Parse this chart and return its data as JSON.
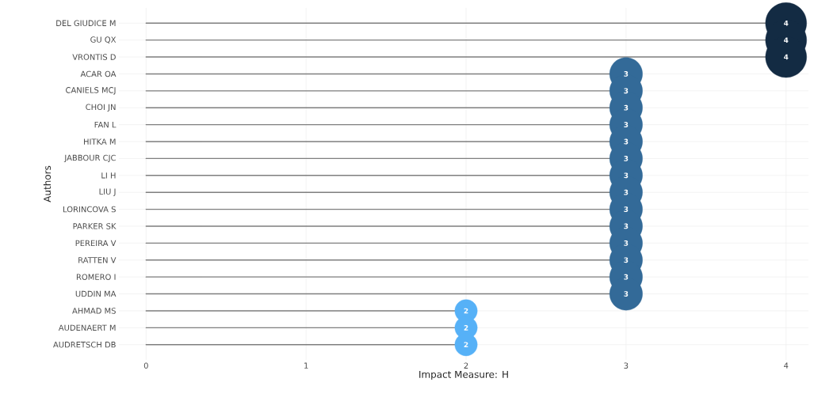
{
  "chart_data": {
    "type": "lollipop",
    "orientation": "horizontal",
    "xlabel": "Impact Measure: H",
    "ylabel": "Authors",
    "categories": [
      "DEL GIUDICE M",
      "GU QX",
      "VRONTIS D",
      "ACAR OA",
      "CANIELS MCJ",
      "CHOI JN",
      "FAN L",
      "HITKA M",
      "JABBOUR CJC",
      "LI H",
      "LIU J",
      "LORINCOVA S",
      "PARKER SK",
      "PEREIRA V",
      "RATTEN V",
      "ROMERO I",
      "UDDIN MA",
      "AHMAD MS",
      "AUDENAERT M",
      "AUDRETSCH DB"
    ],
    "values": [
      4,
      4,
      4,
      3,
      3,
      3,
      3,
      3,
      3,
      3,
      3,
      3,
      3,
      3,
      3,
      3,
      3,
      2,
      2,
      2
    ],
    "colors": [
      "#132b43",
      "#132b43",
      "#132b43",
      "#336a98",
      "#336a98",
      "#336a98",
      "#336a98",
      "#336a98",
      "#336a98",
      "#336a98",
      "#336a98",
      "#336a98",
      "#336a98",
      "#336a98",
      "#336a98",
      "#336a98",
      "#336a98",
      "#56b1f7",
      "#56b1f7",
      "#56b1f7"
    ],
    "sizes": [
      1,
      1,
      1,
      0.64,
      0.64,
      0.64,
      0.64,
      0.64,
      0.64,
      0.64,
      0.64,
      0.64,
      0.64,
      0.64,
      0.64,
      0.64,
      0.64,
      0.3,
      0.3,
      0.3
    ],
    "xlim": [
      -0.17,
      4.14
    ],
    "xticks": [
      0,
      1,
      2,
      3,
      4
    ],
    "grid": true,
    "data_labels": true,
    "marker": "circle"
  }
}
